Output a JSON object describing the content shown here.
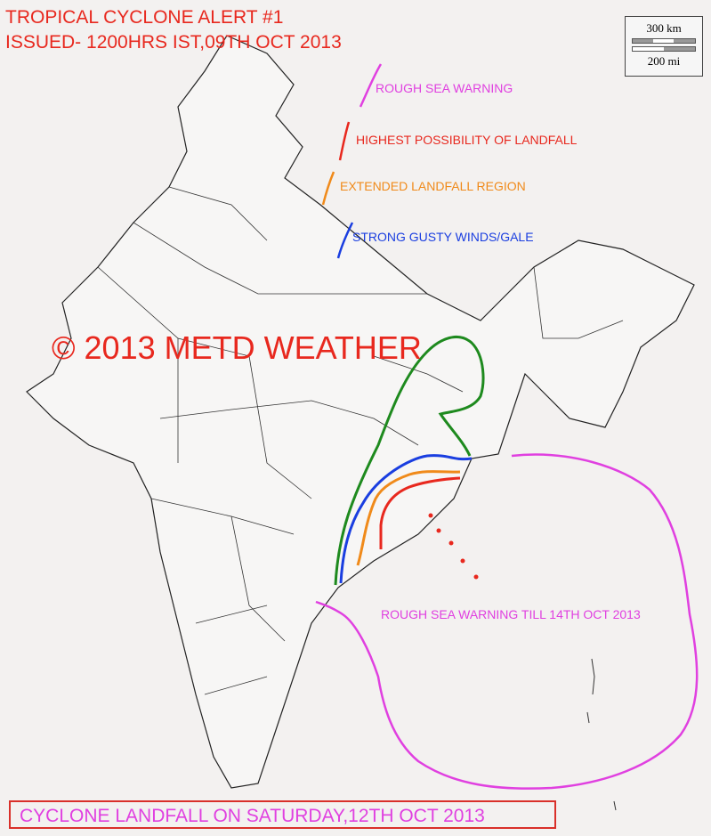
{
  "title": {
    "line1": "TROPICAL CYCLONE ALERT #1",
    "line2": "ISSUED- 1200HRS IST,09TH OCT 2013"
  },
  "legend": [
    {
      "label": "ROUGH SEA WARNING",
      "color": "#e040e0"
    },
    {
      "label": "HIGHEST POSSIBILITY OF LANDFALL",
      "color": "#e8281e"
    },
    {
      "label": "EXTENDED LANDFALL REGION",
      "color": "#f08a1a"
    },
    {
      "label": "STRONG GUSTY WINDS/GALE",
      "color": "#1a3ee0"
    }
  ],
  "watermark": "© 2013 METD WEATHER",
  "sea_note": "ROUGH SEA WARNING TILL 14TH OCT 2013",
  "footer": "CYCLONE LANDFALL ON SATURDAY,12TH OCT 2013",
  "scale": {
    "km": "300 km",
    "mi": "200 mi"
  },
  "colors": {
    "green_zone": "#1e8a1e",
    "text_red": "#e8281e",
    "magenta": "#e040e0"
  }
}
